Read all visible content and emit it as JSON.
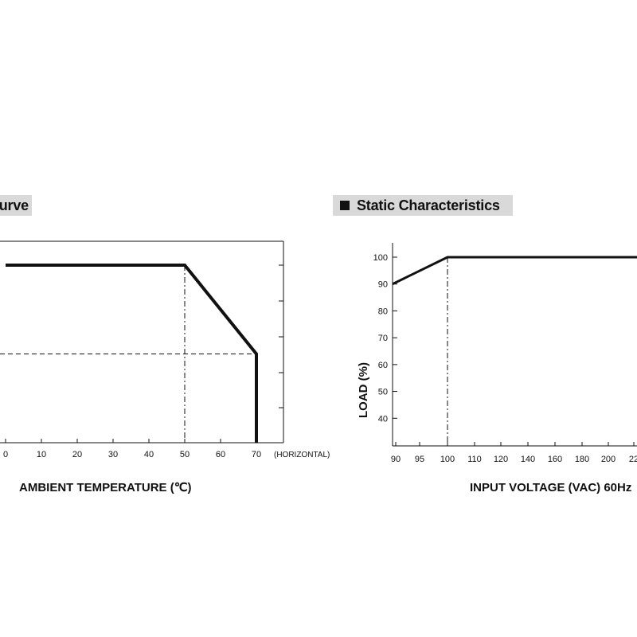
{
  "chart_data": [
    {
      "type": "line",
      "title": "urve",
      "xlabel": "AMBIENT TEMPERATURE (℃)",
      "x_note": "(HORIZONTAL)",
      "xticks": [
        "0",
        "10",
        "20",
        "30",
        "40",
        "50",
        "60",
        "70"
      ],
      "xlim": [
        0,
        75
      ],
      "ylim": [
        0,
        100
      ],
      "grid": false,
      "series": [
        {
          "x": [
            0,
            50,
            70,
            70
          ],
          "y": [
            100,
            100,
            50,
            0
          ]
        }
      ],
      "reference_lines": [
        {
          "orientation": "vertical",
          "x": 50,
          "style": "dash-dot"
        },
        {
          "orientation": "horizontal",
          "y": 50,
          "style": "dashed"
        }
      ]
    },
    {
      "type": "line",
      "title": "Static Characteristics",
      "xlabel": "INPUT VOLTAGE (VAC) 60Hz",
      "ylabel": "LOAD (%)",
      "xticks": [
        "90",
        "95",
        "100",
        "110",
        "120",
        "140",
        "160",
        "180",
        "200",
        "22"
      ],
      "yticks": [
        "40",
        "50",
        "60",
        "70",
        "80",
        "90",
        "100"
      ],
      "ylim": [
        30,
        105
      ],
      "grid": false,
      "series": [
        {
          "x": [
            "90",
            "100",
            "22"
          ],
          "y": [
            90,
            100,
            100
          ]
        }
      ],
      "reference_lines": [
        {
          "orientation": "vertical",
          "x": "100",
          "style": "dash-dot"
        }
      ]
    }
  ],
  "colors": {
    "line": "#111111",
    "title_bg": "#d9d9d9"
  }
}
